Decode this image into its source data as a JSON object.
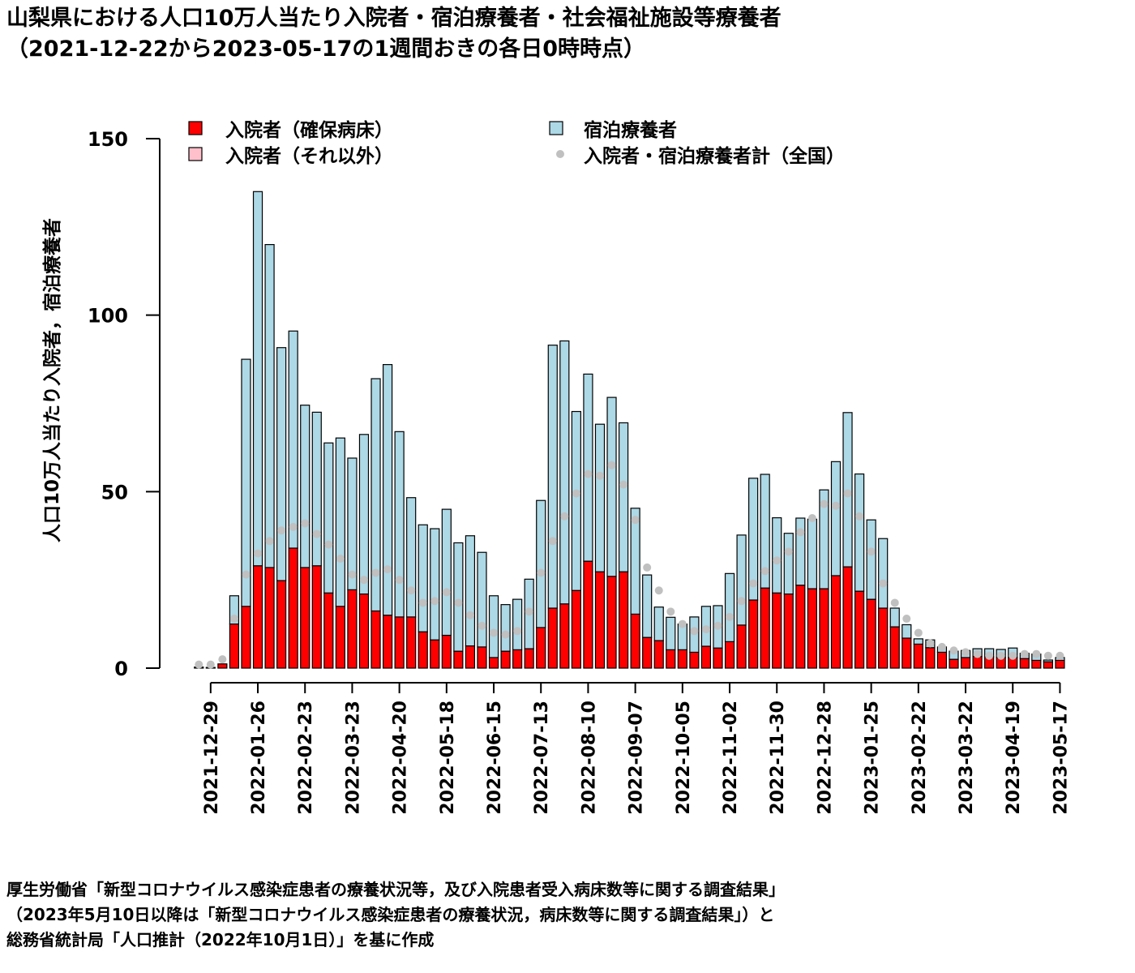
{
  "title": {
    "line1": "山梨県における人口10万人当たり入院者・宿泊療養者・社会福祉施設等療養者",
    "line2": "（2021-12-22から2023-05-17の1週間おきの各日0時時点）"
  },
  "footer": {
    "line1": "厚生労働省「新型コロナウイルス感染症患者の療養状況等，及び入院患者受入病床数等に関する調査結果」",
    "line2": "（2023年5月10日以降は「新型コロナウイルス感染症患者の療養状況，病床数等に関する調査結果」）と",
    "line3": "総務省統計局「人口推計（2022年10月1日）」を基に作成"
  },
  "colors": {
    "hospital_secured": "#ff0000",
    "hospital_other": "#ffc0cb",
    "hotel": "#add8e6",
    "national_total": "#c0c0c0"
  },
  "chart_data": {
    "type": "bar",
    "ylabel": "人口10万人当たり入院者，宿泊療養者",
    "ylim": [
      0,
      150
    ],
    "yticks": [
      0,
      50,
      100,
      150
    ],
    "x_tick_labels": [
      "2021-12-29",
      "2022-01-26",
      "2022-02-23",
      "2022-03-23",
      "2022-04-20",
      "2022-05-18",
      "2022-06-15",
      "2022-07-13",
      "2022-08-10",
      "2022-09-07",
      "2022-10-05",
      "2022-11-02",
      "2022-11-30",
      "2022-12-28",
      "2023-01-25",
      "2023-02-22",
      "2023-03-22",
      "2023-04-19",
      "2023-05-17"
    ],
    "x_tick_every": 4,
    "x_tick_offset": 1,
    "legend": [
      "入院者（確保病床）",
      "入院者（それ以外）",
      "宿泊療養者",
      "入院者・宿泊療養者計（全国）"
    ],
    "legend_position": "top",
    "stacked": true,
    "categories": [
      "2021-12-22",
      "2021-12-29",
      "2022-01-05",
      "2022-01-12",
      "2022-01-19",
      "2022-01-26",
      "2022-02-02",
      "2022-02-09",
      "2022-02-16",
      "2022-02-23",
      "2022-03-02",
      "2022-03-09",
      "2022-03-16",
      "2022-03-23",
      "2022-03-30",
      "2022-04-06",
      "2022-04-13",
      "2022-04-20",
      "2022-04-27",
      "2022-05-04",
      "2022-05-11",
      "2022-05-18",
      "2022-05-25",
      "2022-06-01",
      "2022-06-08",
      "2022-06-15",
      "2022-06-22",
      "2022-06-29",
      "2022-07-06",
      "2022-07-13",
      "2022-07-20",
      "2022-07-27",
      "2022-08-03",
      "2022-08-10",
      "2022-08-17",
      "2022-08-24",
      "2022-08-31",
      "2022-09-07",
      "2022-09-14",
      "2022-09-21",
      "2022-09-28",
      "2022-10-05",
      "2022-10-12",
      "2022-10-19",
      "2022-10-26",
      "2022-11-02",
      "2022-11-09",
      "2022-11-16",
      "2022-11-23",
      "2022-11-30",
      "2022-12-07",
      "2022-12-14",
      "2022-12-21",
      "2022-12-28",
      "2023-01-04",
      "2023-01-11",
      "2023-01-18",
      "2023-01-25",
      "2023-02-01",
      "2023-02-08",
      "2023-02-15",
      "2023-02-22",
      "2023-03-01",
      "2023-03-08",
      "2023-03-15",
      "2023-03-22",
      "2023-03-29",
      "2023-04-05",
      "2023-04-12",
      "2023-04-19",
      "2023-04-26",
      "2023-05-03",
      "2023-05-10",
      "2023-05-17"
    ],
    "series": [
      {
        "name": "入院者（確保病床）",
        "values": [
          0.3,
          0.2,
          1.2,
          12.5,
          17.5,
          29,
          28.5,
          24.8,
          34,
          28.5,
          29,
          21.3,
          17.5,
          22.2,
          21,
          16.2,
          15,
          14.5,
          14.5,
          10.3,
          8,
          9.3,
          4.8,
          6.3,
          6,
          3,
          4.8,
          5.2,
          5.5,
          11.5,
          17,
          18.2,
          22,
          30.3,
          27.3,
          26,
          27.3,
          15.3,
          8.7,
          7.8,
          5.2,
          5.2,
          4.5,
          6.2,
          5.7,
          7.5,
          12.2,
          19.3,
          22.7,
          21.3,
          21,
          23.5,
          22.5,
          22.5,
          26.2,
          28.7,
          21.8,
          19.5,
          17,
          11.7,
          8.5,
          6.8,
          5.8,
          4.5,
          2.5,
          3,
          3.3,
          3.2,
          3,
          3,
          2.7,
          2.2,
          1.8,
          2.2
        ]
      },
      {
        "name": "入院者（それ以外）",
        "values": [
          0,
          0,
          0,
          0,
          0,
          0,
          0,
          0,
          0,
          0,
          0,
          0,
          0,
          0,
          0,
          0,
          0,
          0,
          0,
          0,
          0,
          0,
          0,
          0,
          0,
          0,
          0,
          0,
          0,
          0,
          0,
          0,
          0,
          0,
          0,
          0,
          0,
          0,
          0,
          0,
          0,
          0,
          0,
          0,
          0,
          0,
          0,
          0,
          0,
          0,
          0,
          0,
          0,
          0,
          0,
          0,
          0,
          0,
          0,
          0,
          0,
          0,
          0,
          0,
          0,
          0,
          0,
          0,
          0,
          0,
          0,
          0,
          0,
          0
        ]
      },
      {
        "name": "宿泊療養者",
        "values": [
          0,
          0,
          0,
          8,
          70,
          106,
          91.5,
          66,
          61.5,
          46,
          43.5,
          42.5,
          47.7,
          37.3,
          45.2,
          65.8,
          71,
          52.5,
          33.8,
          30.3,
          31.5,
          35.7,
          30.7,
          31.2,
          26.8,
          17.5,
          13.2,
          14.3,
          19.7,
          36,
          74.5,
          74.5,
          50.7,
          53,
          41.8,
          50.7,
          42.2,
          30,
          17.7,
          9.5,
          9.2,
          7.3,
          10,
          11.3,
          12,
          19.3,
          25.5,
          34.5,
          32.2,
          21.3,
          17.2,
          19,
          19.7,
          28,
          32.3,
          43.7,
          33.2,
          22.5,
          19.7,
          5.3,
          3.8,
          1.5,
          2.2,
          1.5,
          2.3,
          2,
          2.2,
          2.3,
          2.3,
          2.7,
          1.5,
          1.8,
          0.5,
          0.8
        ]
      },
      {
        "name": "入院者・宿泊療養者計（全国）",
        "values": [
          1,
          1,
          2.5,
          14,
          26.5,
          32.5,
          36,
          39,
          40,
          41,
          38,
          35,
          31,
          26.5,
          25,
          27,
          28,
          25,
          22,
          18.5,
          19,
          21.5,
          18.5,
          15,
          12,
          10,
          9.5,
          10.5,
          16,
          27,
          36,
          43,
          49.5,
          55,
          54.5,
          57.5,
          52,
          42,
          28.5,
          22,
          16,
          12.5,
          10.5,
          11,
          12,
          14.5,
          19,
          24,
          27.5,
          30.5,
          33,
          38.5,
          42.5,
          46.5,
          46,
          49.5,
          43,
          33,
          24,
          18.5,
          14,
          10,
          7,
          6,
          5,
          4.5,
          4,
          3.5,
          3.5,
          3.5,
          4,
          4,
          3.5,
          3.5
        ]
      }
    ]
  }
}
